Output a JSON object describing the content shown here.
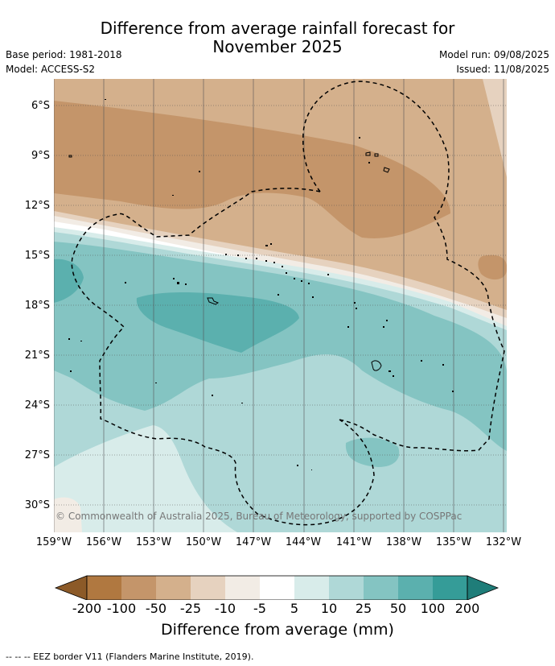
{
  "title_line1": "Difference from average rainfall forecast for",
  "title_line2": "November 2025",
  "base_period": "Base period: 1981-2018",
  "model": "Model: ACCESS-S2",
  "model_run": "Model run: 09/08/2025",
  "issued": "Issued: 11/08/2025",
  "lat_labels": [
    "6°S",
    "9°S",
    "12°S",
    "15°S",
    "18°S",
    "21°S",
    "24°S",
    "27°S",
    "30°S"
  ],
  "lon_labels": [
    "159°W",
    "156°W",
    "153°W",
    "150°W",
    "147°W",
    "144°W",
    "141°W",
    "138°W",
    "135°W",
    "132°W"
  ],
  "copyright": "© Commonwealth of Australia 2025, Bureau of Meteorology, supported by COSPPac",
  "colorbar": {
    "ticks": [
      "-200",
      "-100",
      "-50",
      "-25",
      "-10",
      "-5",
      "5",
      "10",
      "25",
      "50",
      "100",
      "200"
    ],
    "colors": [
      "#8c5a28",
      "#b07840",
      "#c4956a",
      "#d4b08c",
      "#e6d2bf",
      "#f2ece5",
      "#ffffff",
      "#d8ecea",
      "#afd8d7",
      "#84c4c2",
      "#5bb0ae",
      "#359c98",
      "#1f7d79"
    ],
    "title": "Difference from average (mm)"
  },
  "footer": "-- -- -- EEZ border V11 (Flanders Marine Institute, 2019)."
}
